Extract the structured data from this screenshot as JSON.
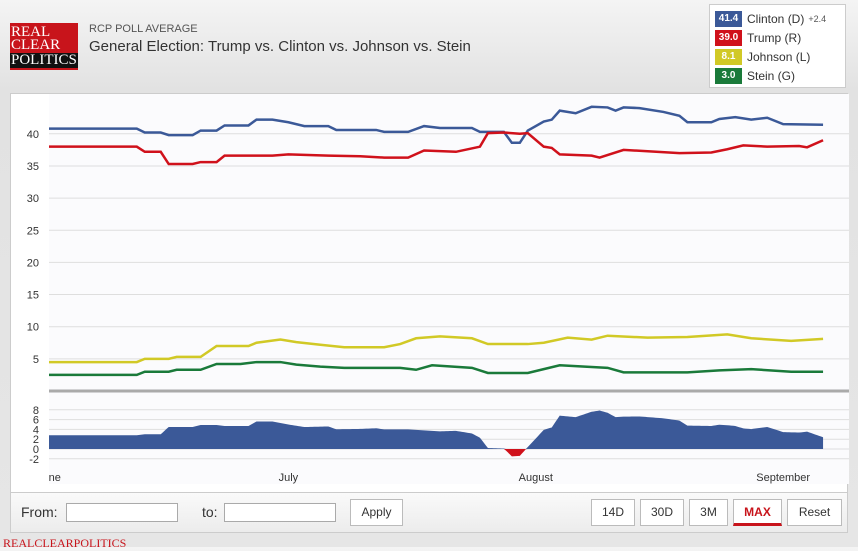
{
  "header": {
    "logo_text": [
      "REAL",
      "CLEAR",
      "POLITICS"
    ],
    "subtitle": "RCP POLL AVERAGE",
    "title": "General Election: Trump vs. Clinton vs. Johnson vs. Stein"
  },
  "legend": [
    {
      "value": "41.4",
      "name": "Clinton (D)",
      "change": "+2.4",
      "color": "#3b5998"
    },
    {
      "value": "39.0",
      "name": "Trump (R)",
      "change": "",
      "color": "#d0111b"
    },
    {
      "value": "8.1",
      "name": "Johnson (L)",
      "change": "",
      "color": "#d1c926"
    },
    {
      "value": "3.0",
      "name": "Stein (G)",
      "change": "",
      "color": "#1a7a3a"
    }
  ],
  "chart_data": {
    "type": "line",
    "xaxis": {
      "ticks": [
        "June",
        "July",
        "August",
        "September"
      ],
      "range": [
        "Jun 1",
        "Sep 6"
      ]
    },
    "yaxis": {
      "ticks": [
        5,
        10,
        15,
        20,
        25,
        30,
        35,
        40
      ],
      "range": [
        0,
        46
      ],
      "grid": true
    },
    "spread_axis": {
      "ticks": [
        -2,
        0,
        2,
        4,
        6,
        8
      ],
      "range": [
        -3,
        9
      ]
    },
    "series": [
      {
        "name": "Clinton (D)",
        "color": "#3b5998",
        "points": [
          [
            "Jun 1",
            40.8
          ],
          [
            "Jun 12",
            40.8
          ],
          [
            "Jun 13",
            40.2
          ],
          [
            "Jun 15",
            40.2
          ],
          [
            "Jun 16",
            39.8
          ],
          [
            "Jun 19",
            39.8
          ],
          [
            "Jun 20",
            40.5
          ],
          [
            "Jun 22",
            40.5
          ],
          [
            "Jun 23",
            41.3
          ],
          [
            "Jun 26",
            41.3
          ],
          [
            "Jun 27",
            42.2
          ],
          [
            "Jun 29",
            42.2
          ],
          [
            "Jul 1",
            41.8
          ],
          [
            "Jul 3",
            41.2
          ],
          [
            "Jul 6",
            41.2
          ],
          [
            "Jul 7",
            40.6
          ],
          [
            "Jul 12",
            40.6
          ],
          [
            "Jul 13",
            40.3
          ],
          [
            "Jul 16",
            40.3
          ],
          [
            "Jul 18",
            41.2
          ],
          [
            "Jul 20",
            40.9
          ],
          [
            "Jul 24",
            40.9
          ],
          [
            "Jul 25",
            40.3
          ],
          [
            "Jul 28",
            40.3
          ],
          [
            "Jul 29",
            38.6
          ],
          [
            "Jul 30",
            38.6
          ],
          [
            "Jul 31",
            40.5
          ],
          [
            "Aug 2",
            41.9
          ],
          [
            "Aug 3",
            42.2
          ],
          [
            "Aug 4",
            43.6
          ],
          [
            "Aug 6",
            43.2
          ],
          [
            "Aug 8",
            44.2
          ],
          [
            "Aug 10",
            44.1
          ],
          [
            "Aug 11",
            43.6
          ],
          [
            "Aug 12",
            44.1
          ],
          [
            "Aug 14",
            44.0
          ],
          [
            "Aug 17",
            43.4
          ],
          [
            "Aug 19",
            42.8
          ],
          [
            "Aug 20",
            41.8
          ],
          [
            "Aug 23",
            41.8
          ],
          [
            "Aug 24",
            42.3
          ],
          [
            "Aug 26",
            42.6
          ],
          [
            "Aug 28",
            42.2
          ],
          [
            "Aug 30",
            42.5
          ],
          [
            "Sep 1",
            41.5
          ],
          [
            "Sep 6",
            41.4
          ]
        ]
      },
      {
        "name": "Trump (R)",
        "color": "#d0111b",
        "points": [
          [
            "Jun 1",
            38.0
          ],
          [
            "Jun 12",
            38.0
          ],
          [
            "Jun 13",
            37.2
          ],
          [
            "Jun 15",
            37.2
          ],
          [
            "Jun 16",
            35.3
          ],
          [
            "Jun 19",
            35.3
          ],
          [
            "Jun 20",
            35.6
          ],
          [
            "Jun 22",
            35.6
          ],
          [
            "Jun 23",
            36.6
          ],
          [
            "Jun 29",
            36.6
          ],
          [
            "Jul 1",
            36.8
          ],
          [
            "Jul 6",
            36.6
          ],
          [
            "Jul 10",
            36.5
          ],
          [
            "Jul 13",
            36.3
          ],
          [
            "Jul 16",
            36.3
          ],
          [
            "Jul 18",
            37.4
          ],
          [
            "Jul 22",
            37.2
          ],
          [
            "Jul 25",
            38.0
          ],
          [
            "Jul 26",
            40.1
          ],
          [
            "Jul 28",
            40.2
          ],
          [
            "Jul 30",
            40.0
          ],
          [
            "Jul 31",
            40.1
          ],
          [
            "Aug 2",
            38.0
          ],
          [
            "Aug 3",
            37.8
          ],
          [
            "Aug 4",
            36.8
          ],
          [
            "Aug 8",
            36.6
          ],
          [
            "Aug 9",
            36.3
          ],
          [
            "Aug 12",
            37.5
          ],
          [
            "Aug 19",
            37.0
          ],
          [
            "Aug 23",
            37.1
          ],
          [
            "Aug 25",
            37.6
          ],
          [
            "Aug 27",
            38.2
          ],
          [
            "Aug 30",
            38.0
          ],
          [
            "Sep 3",
            38.1
          ],
          [
            "Sep 4",
            37.9
          ],
          [
            "Sep 6",
            39.0
          ]
        ]
      },
      {
        "name": "Johnson (L)",
        "color": "#d1c926",
        "points": [
          [
            "Jun 1",
            4.5
          ],
          [
            "Jun 12",
            4.5
          ],
          [
            "Jun 13",
            5.0
          ],
          [
            "Jun 16",
            5.0
          ],
          [
            "Jun 17",
            5.3
          ],
          [
            "Jun 20",
            5.3
          ],
          [
            "Jun 22",
            7.0
          ],
          [
            "Jun 26",
            7.0
          ],
          [
            "Jun 27",
            7.5
          ],
          [
            "Jun 30",
            8.0
          ],
          [
            "Jul 2",
            7.6
          ],
          [
            "Jul 5",
            7.2
          ],
          [
            "Jul 8",
            6.8
          ],
          [
            "Jul 13",
            6.8
          ],
          [
            "Jul 15",
            7.3
          ],
          [
            "Jul 17",
            8.2
          ],
          [
            "Jul 20",
            8.5
          ],
          [
            "Jul 24",
            8.2
          ],
          [
            "Jul 26",
            7.3
          ],
          [
            "Jul 31",
            7.3
          ],
          [
            "Aug 2",
            7.5
          ],
          [
            "Aug 5",
            8.3
          ],
          [
            "Aug 8",
            8.0
          ],
          [
            "Aug 10",
            8.6
          ],
          [
            "Aug 15",
            8.3
          ],
          [
            "Aug 20",
            8.4
          ],
          [
            "Aug 25",
            8.8
          ],
          [
            "Aug 28",
            8.2
          ],
          [
            "Sep 2",
            7.8
          ],
          [
            "Sep 6",
            8.1
          ]
        ]
      },
      {
        "name": "Stein (G)",
        "color": "#1a7a3a",
        "points": [
          [
            "Jun 1",
            2.5
          ],
          [
            "Jun 12",
            2.5
          ],
          [
            "Jun 13",
            3.0
          ],
          [
            "Jun 16",
            3.0
          ],
          [
            "Jun 17",
            3.3
          ],
          [
            "Jun 20",
            3.3
          ],
          [
            "Jun 22",
            4.2
          ],
          [
            "Jun 25",
            4.2
          ],
          [
            "Jun 27",
            4.5
          ],
          [
            "Jun 30",
            4.5
          ],
          [
            "Jul 2",
            4.1
          ],
          [
            "Jul 5",
            3.8
          ],
          [
            "Jul 8",
            3.6
          ],
          [
            "Jul 15",
            3.6
          ],
          [
            "Jul 17",
            3.3
          ],
          [
            "Jul 19",
            4.0
          ],
          [
            "Jul 24",
            3.6
          ],
          [
            "Jul 26",
            2.8
          ],
          [
            "Jul 31",
            2.8
          ],
          [
            "Aug 2",
            3.4
          ],
          [
            "Aug 4",
            4.0
          ],
          [
            "Aug 10",
            3.6
          ],
          [
            "Aug 12",
            2.9
          ],
          [
            "Aug 20",
            2.9
          ],
          [
            "Aug 24",
            3.2
          ],
          [
            "Aug 28",
            3.4
          ],
          [
            "Sep 2",
            3.0
          ],
          [
            "Sep 6",
            3.0
          ]
        ]
      }
    ]
  },
  "controls": {
    "from_label": "From:",
    "to_label": "to:",
    "from_value": "",
    "to_value": "",
    "apply": "Apply",
    "ranges": [
      "14D",
      "30D",
      "3M",
      "MAX",
      "Reset"
    ],
    "active_range": "MAX"
  },
  "footer": "REALCLEARPOLITICS"
}
